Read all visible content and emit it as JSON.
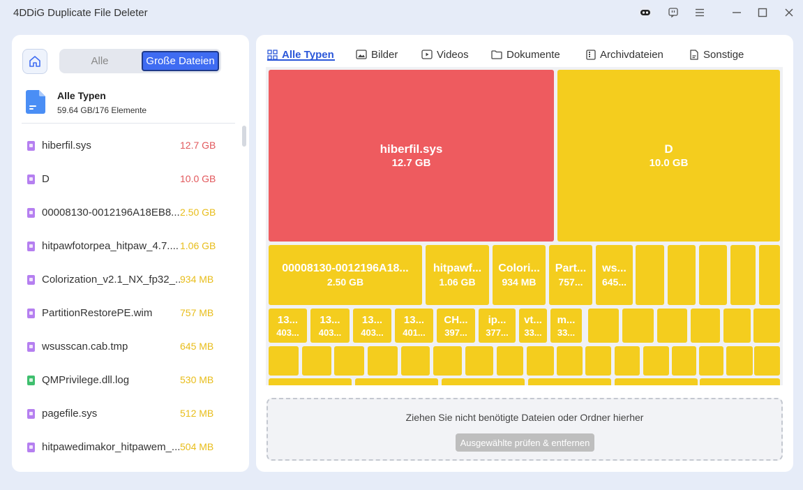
{
  "app": {
    "title": "4DDiG Duplicate File Deleter"
  },
  "left": {
    "segments": {
      "all": "Alle",
      "large": "Große Dateien"
    },
    "summary": {
      "title": "Alle Typen",
      "subtitle": "59.64 GB/176 Elemente"
    },
    "files": [
      {
        "name": "hiberfil.sys",
        "size": "12.7 GB",
        "size_color": "#e2575b",
        "icon_color": "#b57ff0"
      },
      {
        "name": "D",
        "size": "10.0 GB",
        "size_color": "#e2575b",
        "icon_color": "#b57ff0"
      },
      {
        "name": "00008130-0012196A18EB8...",
        "size": "2.50 GB",
        "size_color": "#e8bd1a",
        "icon_color": "#b57ff0"
      },
      {
        "name": "hitpawfotorpea_hitpaw_4.7....",
        "size": "1.06 GB",
        "size_color": "#e8bd1a",
        "icon_color": "#b57ff0"
      },
      {
        "name": "Colorization_v2.1_NX_fp32_...",
        "size": "934 MB",
        "size_color": "#e8bd1a",
        "icon_color": "#b57ff0"
      },
      {
        "name": "PartitionRestorePE.wim",
        "size": "757 MB",
        "size_color": "#e8bd1a",
        "icon_color": "#b57ff0"
      },
      {
        "name": "wsusscan.cab.tmp",
        "size": "645 MB",
        "size_color": "#e8bd1a",
        "icon_color": "#b57ff0"
      },
      {
        "name": "QMPrivilege.dll.log",
        "size": "530 MB",
        "size_color": "#e8bd1a",
        "icon_color": "#3fbf6e"
      },
      {
        "name": "pagefile.sys",
        "size": "512 MB",
        "size_color": "#e8bd1a",
        "icon_color": "#b57ff0"
      },
      {
        "name": "hitpawedimakor_hitpawem_...",
        "size": "504 MB",
        "size_color": "#e8bd1a",
        "icon_color": "#b57ff0"
      }
    ]
  },
  "tabs": [
    {
      "label": "Alle Typen",
      "icon": "grid-icon"
    },
    {
      "label": "Bilder",
      "icon": "image-icon"
    },
    {
      "label": "Videos",
      "icon": "video-icon"
    },
    {
      "label": "Dokumente",
      "icon": "folder-icon"
    },
    {
      "label": "Archivdateien",
      "icon": "archive-icon"
    },
    {
      "label": "Sonstige",
      "icon": "file-icon"
    }
  ],
  "treemap": {
    "tiles": [
      {
        "name": "hiberfil.sys",
        "size": "12.7 GB",
        "color": "red"
      },
      {
        "name": "D",
        "size": "10.0 GB",
        "color": "yellow"
      },
      {
        "name": "00008130-0012196A18...",
        "size": "2.50 GB"
      },
      {
        "name": "hitpawf...",
        "size": "1.06 GB"
      },
      {
        "name": "Colori...",
        "size": "934 MB"
      },
      {
        "name": "Part...",
        "size": "757..."
      },
      {
        "name": "ws...",
        "size": "645..."
      },
      {
        "name": "13...",
        "size": "403..."
      },
      {
        "name": "13...",
        "size": "403..."
      },
      {
        "name": "13...",
        "size": "403..."
      },
      {
        "name": "13...",
        "size": "401..."
      },
      {
        "name": "CH...",
        "size": "397..."
      },
      {
        "name": "ip...",
        "size": "377..."
      },
      {
        "name": "vt...",
        "size": "33..."
      },
      {
        "name": "m...",
        "size": "33..."
      }
    ]
  },
  "dropzone": {
    "text": "Ziehen Sie nicht benötigte Dateien oder Ordner hierher",
    "button": "Ausgewählte prüfen & entfernen"
  }
}
